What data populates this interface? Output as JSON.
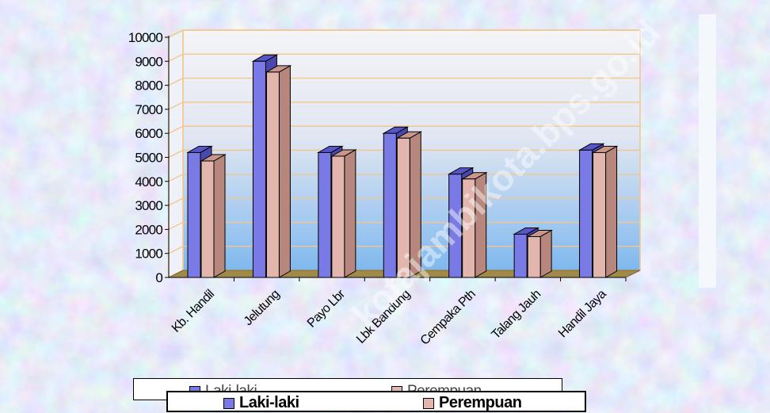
{
  "colors": {
    "laki": "#7a7ae6",
    "laki_top": "#5656c8",
    "perempuan": "#e2b6ad",
    "perempuan_top": "#c9968c",
    "floor": "#a08a4a",
    "wall_top": "#f4f4f6",
    "wall_bottom": "#7fb8ee"
  },
  "chart_data": {
    "type": "bar",
    "title": "",
    "xlabel": "",
    "ylabel": "",
    "ylim": [
      0,
      10000
    ],
    "yticks": [
      "0",
      "1000",
      "2000",
      "3000",
      "4000",
      "5000",
      "6000",
      "7000",
      "8000",
      "9000",
      "10000"
    ],
    "categories": [
      "Kb. Handil",
      "Jelutung",
      "Payo Lbr",
      "Lbk Bandung",
      "Cempaka Pth",
      "Talang Jauh",
      "Handil Jaya"
    ],
    "series": [
      {
        "name": "Laki-laki",
        "values": [
          5200,
          9000,
          5200,
          6000,
          4300,
          1800,
          5300
        ]
      },
      {
        "name": "Perempuan",
        "values": [
          4850,
          8550,
          5050,
          5800,
          4100,
          1700,
          5200
        ]
      }
    ],
    "grid": true,
    "legend": "bottom"
  },
  "watermark": "kotajambikota.bps.go.id"
}
